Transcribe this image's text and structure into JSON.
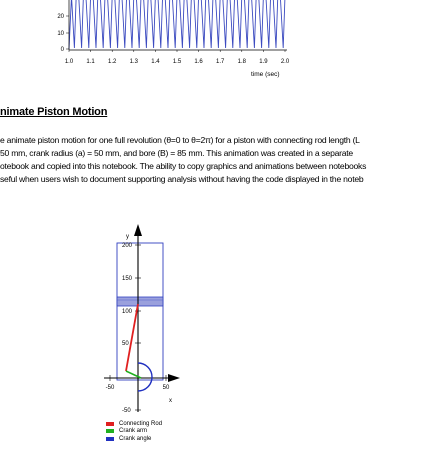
{
  "plot_top": {
    "x_ticks": [
      "1.0",
      "1.1",
      "1.2",
      "1.3",
      "1.4",
      "1.5",
      "1.6",
      "1.7",
      "1.8",
      "1.9",
      "2.0"
    ],
    "y_ticks": [
      "20",
      "10",
      "0"
    ],
    "xlabel": "time (sec)",
    "color": "#3c4bc0"
  },
  "section": {
    "title": "nimate Piston Motion",
    "lines": [
      "e animate piston motion for one full revolution (θ=0 to θ=2π) for a piston with connecting rod length (L",
      "50 mm, crank radius (a) = 50 mm, and bore (B) = 85 mm. This animation was created in a separate",
      "otebook and copied into this notebook. The ability to copy graphics and animations between notebooks",
      "seful when users wish to document supporting analysis without having the code displayed in the noteb"
    ]
  },
  "animation": {
    "y_axis_label": "y",
    "x_axis_label": "x",
    "y_ticks": [
      "200",
      "150",
      "100",
      "50",
      "-50"
    ],
    "x_ticks": [
      "-50",
      "50"
    ],
    "legend": [
      {
        "label": "Connecting Rod",
        "color": "#e02020"
      },
      {
        "label": "Crank arm",
        "color": "#20b020"
      },
      {
        "label": "Crank angle",
        "color": "#2030c0"
      }
    ]
  }
}
